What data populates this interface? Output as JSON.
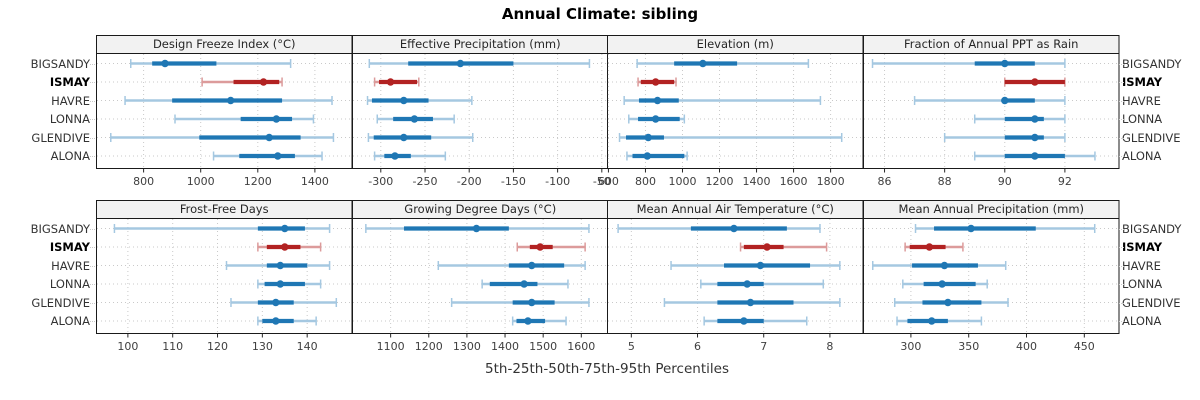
{
  "title": "Annual Climate: sibling",
  "caption": "5th-25th-50th-75th-95th Percentiles",
  "stations": [
    "BIGSANDY",
    "ISMAY",
    "HAVRE",
    "LONNA",
    "GLENDIVE",
    "ALONA"
  ],
  "highlight_station": "ISMAY",
  "percentile_labels": [
    "5th",
    "25th",
    "50th",
    "75th",
    "95th"
  ],
  "colors": {
    "blue": "#1f77b4",
    "blue_light": "#a5c8e1",
    "red": "#b22222",
    "red_light": "#dc9b9b",
    "header_bg": "#f2f2f2",
    "panel_border": "#1a1a1a",
    "grid": "#c9c9c9",
    "tick_text": "#404040"
  },
  "chart_data": {
    "type": "percentile-dotplot",
    "layout": "2 rows x 4 columns, station labels on both sides",
    "panels": [
      {
        "title": "Design Freeze Index (°C)",
        "ticks": [
          800,
          1000,
          1200,
          1400
        ],
        "xlim": [
          635,
          1530
        ],
        "series": {
          "BIGSANDY": [
            755,
            830,
            875,
            1055,
            1315
          ],
          "ISMAY": [
            1005,
            1115,
            1220,
            1275,
            1285
          ],
          "HAVRE": [
            735,
            900,
            1105,
            1285,
            1460
          ],
          "LONNA": [
            910,
            1140,
            1265,
            1320,
            1395
          ],
          "GLENDIVE": [
            685,
            995,
            1240,
            1350,
            1465
          ],
          "ALONA": [
            1045,
            1135,
            1270,
            1330,
            1425
          ]
        }
      },
      {
        "title": "Effective Precipitation (mm)",
        "ticks": [
          -300,
          -250,
          -200,
          -150,
          -100,
          -50
        ],
        "xlim": [
          -332,
          -43
        ],
        "series": {
          "BIGSANDY": [
            -313,
            -269,
            -210,
            -150,
            -64
          ],
          "ISMAY": [
            -307,
            -302,
            -289,
            -259,
            -257
          ],
          "HAVRE": [
            -315,
            -310,
            -274,
            -246,
            -197
          ],
          "LONNA": [
            -304,
            -286,
            -262,
            -241,
            -217
          ],
          "GLENDIVE": [
            -314,
            -308,
            -274,
            -243,
            -196
          ],
          "ALONA": [
            -307,
            -296,
            -284,
            -266,
            -227
          ]
        }
      },
      {
        "title": "Elevation (m)",
        "ticks": [
          600,
          800,
          1000,
          1200,
          1400,
          1600,
          1800
        ],
        "xlim": [
          595,
          1975
        ],
        "series": {
          "BIGSANDY": [
            755,
            955,
            1110,
            1295,
            1680
          ],
          "ISMAY": [
            760,
            775,
            855,
            955,
            965
          ],
          "HAVRE": [
            685,
            765,
            865,
            980,
            1745
          ],
          "LONNA": [
            710,
            760,
            855,
            985,
            1010
          ],
          "GLENDIVE": [
            660,
            695,
            815,
            900,
            1860
          ],
          "ALONA": [
            700,
            730,
            810,
            1010,
            1025
          ]
        }
      },
      {
        "title": "Fraction of Annual PPT as Rain",
        "ticks": [
          86,
          88,
          90,
          92
        ],
        "xlim": [
          85.3,
          93.8
        ],
        "series": {
          "BIGSANDY": [
            85.6,
            89,
            90,
            91,
            92
          ],
          "ISMAY": [
            90,
            90,
            91,
            92,
            92
          ],
          "HAVRE": [
            87,
            90,
            90,
            91,
            92
          ],
          "LONNA": [
            89,
            90,
            91,
            91.3,
            92
          ],
          "GLENDIVE": [
            88,
            90,
            91,
            91.3,
            92
          ],
          "ALONA": [
            89,
            90,
            91,
            92,
            93
          ]
        }
      },
      {
        "title": "Frost-Free Days",
        "ticks": [
          100,
          110,
          120,
          130,
          140
        ],
        "xlim": [
          93,
          150
        ],
        "series": {
          "BIGSANDY": [
            97,
            129,
            135,
            139.5,
            145
          ],
          "ISMAY": [
            129,
            131,
            135,
            138.5,
            143
          ],
          "HAVRE": [
            122,
            131,
            134,
            140,
            145
          ],
          "LONNA": [
            129,
            130.5,
            134,
            139.5,
            143
          ],
          "GLENDIVE": [
            123,
            129,
            133,
            137,
            146.5
          ],
          "ALONA": [
            129,
            130,
            133,
            137,
            142
          ]
        }
      },
      {
        "title": "Growing Degree Days (°C)",
        "ticks": [
          1100,
          1200,
          1300,
          1400,
          1500,
          1600
        ],
        "xlim": [
          1000,
          1670
        ],
        "series": {
          "BIGSANDY": [
            1035,
            1135,
            1325,
            1410,
            1620
          ],
          "ISMAY": [
            1432,
            1465,
            1492,
            1525,
            1610
          ],
          "HAVRE": [
            1225,
            1410,
            1470,
            1555,
            1610
          ],
          "LONNA": [
            1340,
            1360,
            1450,
            1485,
            1565
          ],
          "GLENDIVE": [
            1260,
            1420,
            1470,
            1530,
            1620
          ],
          "ALONA": [
            1420,
            1430,
            1460,
            1505,
            1560
          ]
        }
      },
      {
        "title": "Mean Annual Air Temperature (°C)",
        "ticks": [
          5,
          6,
          7,
          8
        ],
        "xlim": [
          4.64,
          8.5
        ],
        "series": {
          "BIGSANDY": [
            4.8,
            5.9,
            6.55,
            7.35,
            7.85
          ],
          "ISMAY": [
            6.65,
            6.7,
            7.05,
            7.3,
            7.95
          ],
          "HAVRE": [
            5.6,
            6.4,
            6.95,
            7.7,
            8.15
          ],
          "LONNA": [
            6.05,
            6.3,
            6.75,
            7.0,
            7.9
          ],
          "GLENDIVE": [
            5.5,
            6.3,
            6.8,
            7.45,
            8.15
          ],
          "ALONA": [
            6.1,
            6.3,
            6.7,
            7.0,
            7.65
          ]
        }
      },
      {
        "title": "Mean Annual Precipitation (mm)",
        "ticks": [
          300,
          350,
          400,
          450
        ],
        "xlim": [
          259,
          480
        ],
        "series": {
          "BIGSANDY": [
            304,
            320,
            352,
            408,
            459
          ],
          "ISMAY": [
            295,
            299,
            316,
            330,
            345
          ],
          "HAVRE": [
            267,
            301,
            329,
            358,
            382
          ],
          "LONNA": [
            293,
            311,
            327,
            356,
            366
          ],
          "GLENDIVE": [
            286,
            310,
            332,
            361,
            384
          ],
          "ALONA": [
            288,
            297,
            318,
            332,
            361
          ]
        }
      }
    ]
  }
}
